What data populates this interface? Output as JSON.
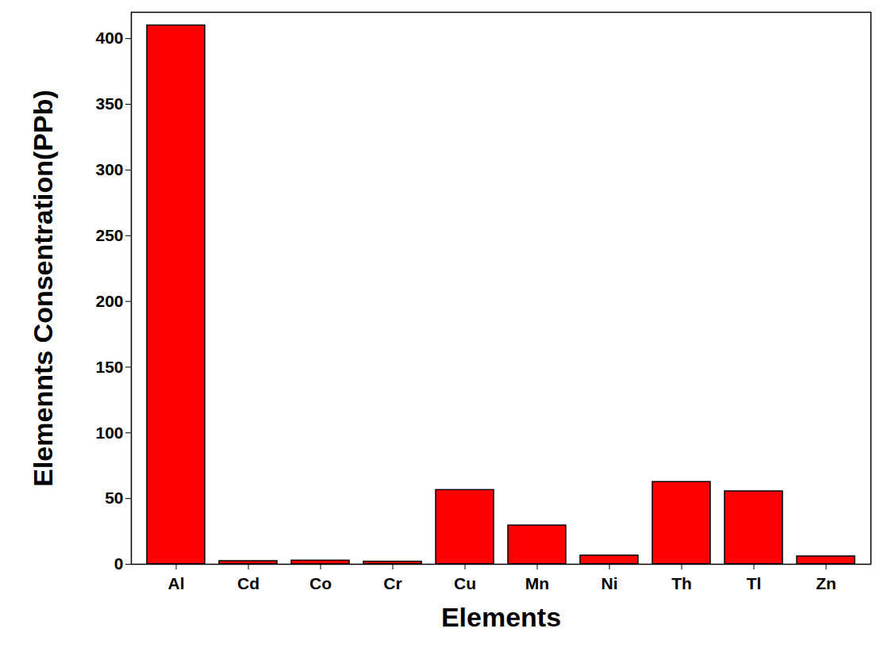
{
  "chart_data": {
    "type": "bar",
    "x_label": "Elements",
    "y_label": "Elemennts Consentration(PPb)",
    "categories": [
      "Al",
      "Cd",
      "Co",
      "Cr",
      "Cu",
      "Mn",
      "Ni",
      "Th",
      "Tl",
      "Zn"
    ],
    "values": [
      410,
      2.4,
      2.8,
      2,
      56.5,
      29.5,
      6.6,
      62.6,
      55.5,
      6
    ],
    "color": "#ff0000",
    "ylim": [
      0,
      420
    ],
    "yticks": [
      0,
      50,
      100,
      150,
      200,
      250,
      300,
      350,
      400
    ],
    "grid": false
  }
}
